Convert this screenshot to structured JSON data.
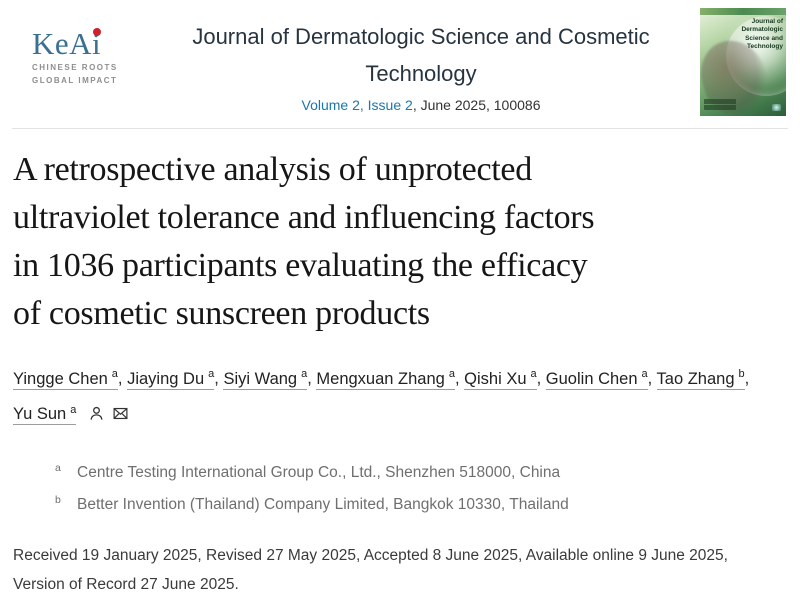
{
  "header": {
    "logo": {
      "brand": "KeAi",
      "tagline1": "CHINESE ROOTS",
      "tagline2": "GLOBAL IMPACT"
    },
    "journal_title": "Journal of Dermatologic Science and Cosmetic Technology",
    "volume_link": "Volume 2, Issue 2",
    "issue_suffix": ", June 2025, 100086",
    "cover_title": "Journal of Dermatologic Science and Technology"
  },
  "article": {
    "title_lines": [
      "A retrospective analysis of unprotected",
      "ultraviolet tolerance and influencing factors",
      "in 1036 participants evaluating the efficacy",
      "of cosmetic sunscreen products"
    ],
    "authors": [
      {
        "name": "Yingge Chen",
        "sup": "a"
      },
      {
        "name": "Jiaying Du",
        "sup": "a"
      },
      {
        "name": "Siyi Wang",
        "sup": "a"
      },
      {
        "name": "Mengxuan Zhang",
        "sup": "a"
      },
      {
        "name": "Qishi Xu",
        "sup": "a"
      },
      {
        "name": "Guolin Chen",
        "sup": "a"
      },
      {
        "name": "Tao Zhang",
        "sup": "b"
      },
      {
        "name": "Yu Sun",
        "sup": "a",
        "corresponding": true
      }
    ],
    "author_separator": ", ",
    "affiliations": [
      {
        "sup": "a",
        "text": "Centre Testing International Group Co., Ltd., Shenzhen 518000, China"
      },
      {
        "sup": "b",
        "text": "Better Invention (Thailand) Company Limited, Bangkok 10330, Thailand"
      }
    ],
    "dates": "Received 19 January 2025, Revised 27 May 2025, Accepted 8 June 2025, Available online 9 June 2025, Version of Record 27 June 2025."
  },
  "colors": {
    "link_blue": "#1a76ad",
    "logo_blue": "#3a7191",
    "logo_dot_red": "#cf2030",
    "journal_title_navy": "#273440"
  }
}
